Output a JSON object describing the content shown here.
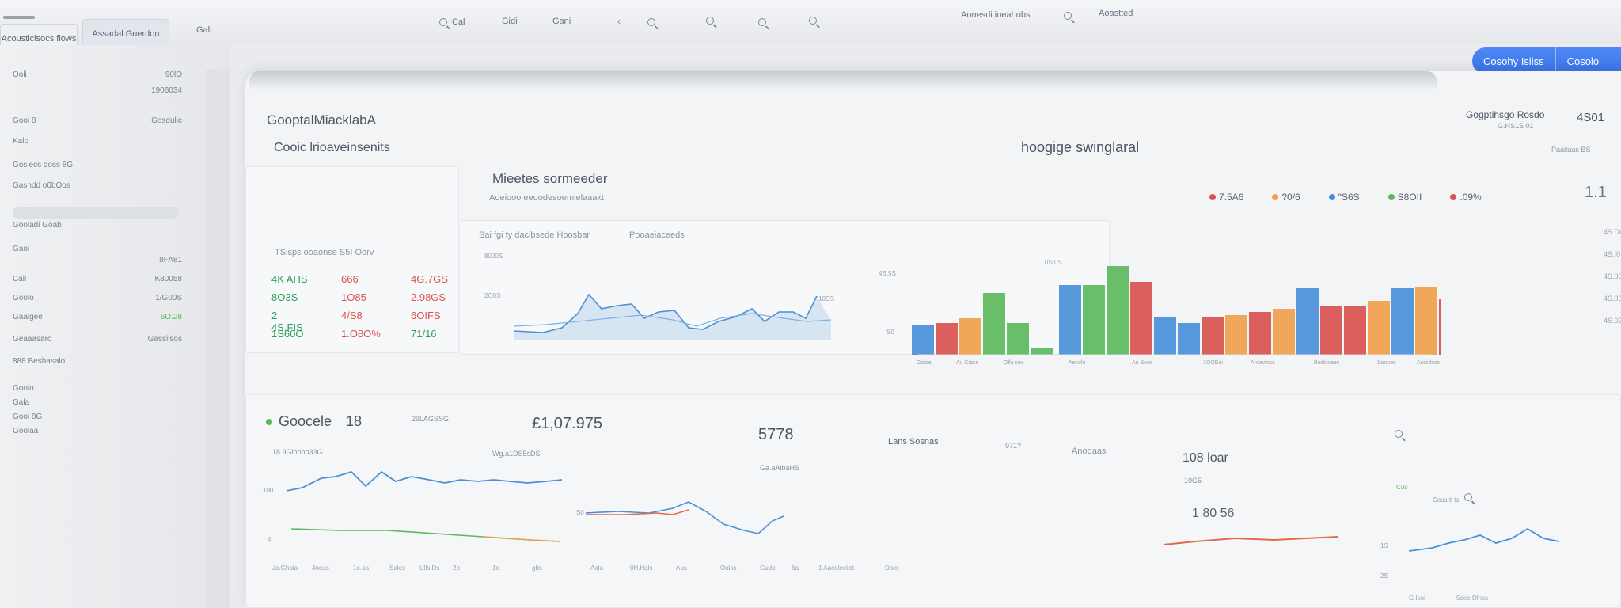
{
  "topbar": {
    "tabs": [
      "Acousticisocs flows",
      "Assadal Guerdon",
      "Gali"
    ],
    "links": [
      "Cal",
      "Gidi",
      "Gani"
    ],
    "right_links": [
      "Aonesdi ioeahobs",
      "Aoastted"
    ]
  },
  "sidebar": {
    "rows": [
      {
        "label": "Ooli",
        "value": "90lO"
      },
      {
        "label": "",
        "value": "1906034"
      },
      {
        "label": "Gooi 8",
        "value": "Gosdulic"
      },
      {
        "label": "Kalo",
        "value": ""
      },
      {
        "label": "Goslecs doss 8G",
        "value": ""
      },
      {
        "label": "Gashdd o0bOos",
        "value": ""
      },
      {
        "label": "Gooladi Goab",
        "value": ""
      },
      {
        "label": "Gaoi",
        "value": ""
      },
      {
        "label": "",
        "value": "8FA81"
      },
      {
        "label": "Cali",
        "value": "K80058"
      },
      {
        "label": "Goolo",
        "value": "1/G00S"
      },
      {
        "label": "Gaalgee",
        "value": "6O.28"
      },
      {
        "label": "Geaaasaro",
        "value": "Gassilsos"
      },
      {
        "label": "888 Beshasalo",
        "value": ""
      },
      {
        "label": "Gooio",
        "value": ""
      },
      {
        "label": "Gala",
        "value": ""
      },
      {
        "label": "Gooi 8G",
        "value": ""
      },
      {
        "label": "Goolaa",
        "value": ""
      }
    ]
  },
  "cta": {
    "primary": "Cosohy Isiiss",
    "secondary": "Cosolo"
  },
  "main": {
    "app_title": "GooptalMiacklabA",
    "section_title": "Cooic lrioaveinsenits",
    "center_title": "hoogige swinglaral",
    "right_header": {
      "label": "Gogptihsgo Rosdo",
      "sub": "G.HS1S 01",
      "value": "4S01",
      "tag": "Paaitaac BS"
    },
    "panel1": {
      "title": "Mieetes sormeeder",
      "subtitle": "Aoeiooo eeoodesoemielaaakt",
      "table_caption": "TSisps ooaonse S5I Oorv",
      "table": [
        [
          "4K AHS",
          "666",
          "4G.7GS"
        ],
        [
          "8O3S",
          "1O85",
          "2.98GS"
        ],
        [
          "2 4S.FIS",
          "4/S8",
          "6OIFS"
        ],
        [
          "1S60O",
          "1.O8O%",
          "71/16"
        ]
      ]
    },
    "panel2": {
      "caption": "Sai fgi ty dacibsede Hoosbar",
      "caption2": "Pooaeiaceeds",
      "axis": [
        "8000S",
        "2O0S",
        "10DS"
      ]
    },
    "legend": [
      {
        "label": "7.5A6",
        "color": "#d9534f"
      },
      {
        "label": "?0/6",
        "color": "#f0a04b"
      },
      {
        "label": "\"S6S",
        "color": "#4a90d9"
      },
      {
        "label": "S8OII",
        "color": "#5cb85c"
      },
      {
        "label": ".09%",
        "color": "#d9534f"
      }
    ],
    "bar_axis": [
      "0S.0S",
      "4S.5S",
      "S0"
    ],
    "bar_ticks": [
      "Goioe",
      "Au Ciass",
      "Ollo seo",
      "Aecolo",
      "Ao Boos",
      "1OOEoi",
      "Aroavloss",
      "Bosblxaes",
      "Spooes",
      "Arosdoss",
      "Hosdors"
    ],
    "right_col": {
      "big": "1.1",
      "vals": [
        "4S.Dl",
        "4S.I0",
        "4S.00",
        "4S.06",
        "4S.02"
      ]
    },
    "bottom": {
      "kpi1": {
        "label": "Goocele",
        "value": "18",
        "sub": "29LAGSSG"
      },
      "kpi1_caption": "18.9Gloooo33G",
      "kpi2": {
        "value": "£1,07.975",
        "sub": "Wg.a1DS5sDS"
      },
      "kpi3": {
        "value": "5778",
        "label": "Lans Sosnas",
        "sub": "Ga.aAlbaHS",
        "extra": "971?"
      },
      "kpi4": {
        "label": "Anodaas",
        "value": "108 loar",
        "sub": "10G5",
        "value2": "1 80 56"
      },
      "axis1": [
        "100",
        "4"
      ],
      "ticks1": [
        "Jo.Ghaia",
        "4oeas",
        "1o.aa",
        "Sales",
        "Ulls Ds",
        "2b",
        "1o",
        "gbs"
      ],
      "ticks2": [
        "Aala",
        "0H.Hals",
        "Aus",
        "Ooiss",
        "Gudo",
        "6a"
      ],
      "ticks3": [
        "1 Aacoleel'ot",
        "Dalo"
      ],
      "right": {
        "label": "Cuo",
        "sub": "Casa tl ts",
        "ticks": [
          "G Isol",
          "5oee Dlnss"
        ],
        "axis": [
          "1S",
          "2S"
        ]
      }
    }
  }
}
